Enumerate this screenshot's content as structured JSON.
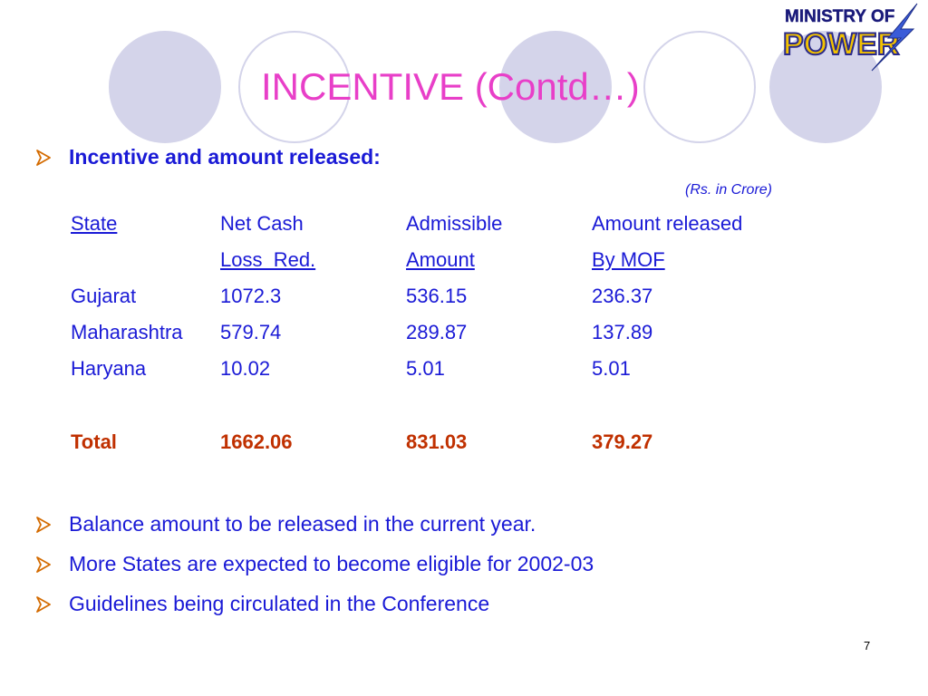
{
  "slide": {
    "title": "INCENTIVE (Contd…)",
    "logo": {
      "line1": "MINISTRY OF",
      "line2": "POWER"
    },
    "intro_bullet": "Incentive and amount released:",
    "unit_note": "(Rs. in Crore)",
    "table": {
      "header_row1": [
        "State",
        "Net Cash",
        "Admissible",
        "Amount released"
      ],
      "header_row2": [
        "",
        "Loss  Red.",
        "Amount",
        "By MOF"
      ],
      "rows": [
        [
          "Gujarat",
          "1072.3",
          "536.15",
          "236.37"
        ],
        [
          "Maharashtra",
          "579.74",
          "289.87",
          "137.89"
        ],
        [
          "Haryana",
          "10.02",
          "5.01",
          "5.01"
        ]
      ],
      "total": [
        "Total",
        "1662.06",
        "831.03",
        "379.27"
      ]
    },
    "bullets": [
      "Balance amount to be released in the current year.",
      "More States are expected to become eligible for 2002-03",
      "Guidelines being circulated in the Conference"
    ],
    "page_number": "7",
    "colors": {
      "title": "#e83fc8",
      "body_text": "#1a1ad6",
      "total_text": "#c03000",
      "circle": "#d4d4ea",
      "bullet_arrow": "#d46b00"
    },
    "icons": {
      "bullet": "arrow-bullet-icon",
      "logo": "ministry-of-power-logo"
    }
  }
}
